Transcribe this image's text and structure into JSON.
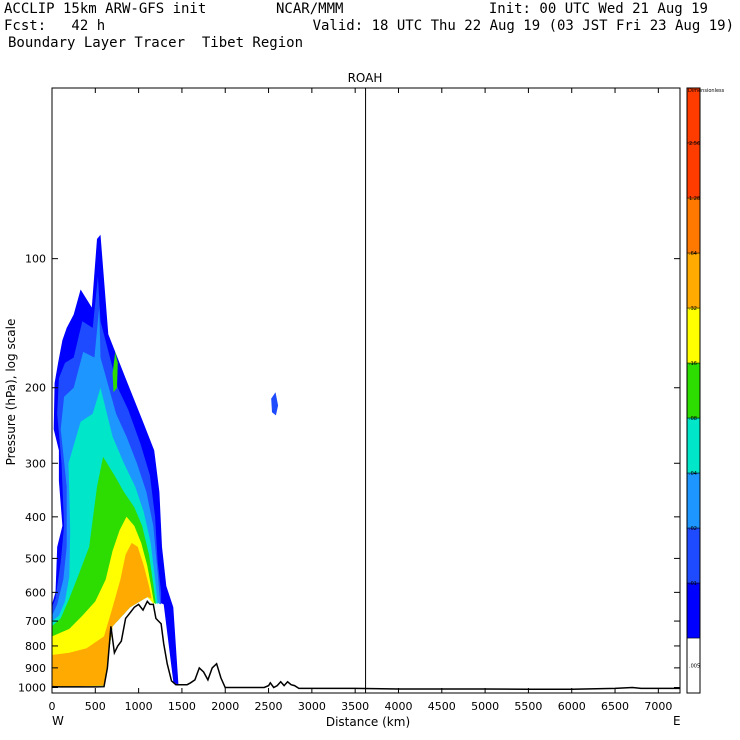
{
  "header": {
    "line1_left": "ACCLIP 15km ARW-GFS init",
    "line1_mid": "NCAR/MMM",
    "line1_right": "Init: 00 UTC Wed 21 Aug 19",
    "line2_left": "Fcst:   42 h",
    "line2_right": "Valid: 18 UTC Thu 22 Aug 19 (03 JST Fri 23 Aug 19)",
    "line3_left": "Boundary Layer Tracer  Tibet Region"
  },
  "chart_data": {
    "type": "heatmap",
    "title": "ROAH",
    "xlabel": "Distance (km)",
    "ylabel": "Pressure (hPa), log scale",
    "x_ticks": [
      0,
      500,
      1000,
      1500,
      2000,
      2500,
      3000,
      3500,
      4000,
      4500,
      5000,
      5500,
      6000,
      6500,
      7000
    ],
    "xlim": [
      0,
      7250
    ],
    "y_ticks": [
      100,
      200,
      300,
      400,
      500,
      600,
      700,
      800,
      900,
      1000
    ],
    "ylim": [
      1030,
      40
    ],
    "y_scale": "log",
    "x_end_labels": {
      "left": "W",
      "right": "E"
    },
    "marker_line_x": 3620,
    "colorbar": {
      "unit": "Dimensionless",
      "levels": [
        ".005",
        ".01",
        ".02",
        ".04",
        ".08",
        ".16",
        ".32",
        ".64",
        "1.28",
        "2.56"
      ],
      "colors": [
        "#ffffff",
        "#0000ff",
        "#1e4bff",
        "#1e96ff",
        "#00e6c8",
        "#2ddc00",
        "#ffff00",
        "#ffaa00",
        "#ff7800",
        "#ff3c00"
      ]
    },
    "tracer_regions": [
      {
        "level": ".01",
        "color": "#0000ff",
        "points": [
          [
            0,
            995
          ],
          [
            600,
            990
          ],
          [
            700,
            720
          ],
          [
            900,
            650
          ],
          [
            1100,
            615
          ],
          [
            1290,
            640
          ],
          [
            1400,
            970
          ],
          [
            1460,
            990
          ],
          [
            1400,
            650
          ],
          [
            1320,
            580
          ],
          [
            1270,
            470
          ],
          [
            1240,
            350
          ],
          [
            1180,
            280
          ],
          [
            1050,
            240
          ],
          [
            850,
            190
          ],
          [
            650,
            150
          ],
          [
            560,
            88
          ],
          [
            520,
            90
          ],
          [
            460,
            130
          ],
          [
            330,
            118
          ],
          [
            250,
            135
          ],
          [
            170,
            145
          ],
          [
            120,
            155
          ],
          [
            70,
            175
          ],
          [
            30,
            195
          ],
          [
            20,
            250
          ],
          [
            80,
            280
          ],
          [
            80,
            330
          ],
          [
            120,
            420
          ],
          [
            60,
            470
          ],
          [
            40,
            600
          ],
          [
            0,
            640
          ]
        ]
      },
      {
        "level": ".02",
        "color": "#1e4bff",
        "points": [
          [
            0,
            995
          ],
          [
            600,
            990
          ],
          [
            700,
            720
          ],
          [
            900,
            650
          ],
          [
            1100,
            615
          ],
          [
            1260,
            640
          ],
          [
            1260,
            600
          ],
          [
            1220,
            510
          ],
          [
            1190,
            400
          ],
          [
            1130,
            320
          ],
          [
            1020,
            270
          ],
          [
            880,
            225
          ],
          [
            760,
            200
          ],
          [
            560,
            140
          ],
          [
            530,
            110
          ],
          [
            470,
            145
          ],
          [
            350,
            140
          ],
          [
            250,
            170
          ],
          [
            150,
            175
          ],
          [
            80,
            190
          ],
          [
            60,
            230
          ],
          [
            110,
            300
          ],
          [
            140,
            420
          ],
          [
            100,
            510
          ],
          [
            40,
            620
          ],
          [
            0,
            650
          ]
        ]
      },
      {
        "level": ".04",
        "color": "#1e96ff",
        "points": [
          [
            0,
            995
          ],
          [
            600,
            990
          ],
          [
            700,
            720
          ],
          [
            900,
            650
          ],
          [
            1100,
            615
          ],
          [
            1250,
            640
          ],
          [
            1220,
            540
          ],
          [
            1170,
            420
          ],
          [
            1090,
            350
          ],
          [
            980,
            300
          ],
          [
            860,
            260
          ],
          [
            740,
            230
          ],
          [
            560,
            170
          ],
          [
            545,
            130
          ],
          [
            490,
            170
          ],
          [
            360,
            165
          ],
          [
            250,
            200
          ],
          [
            140,
            210
          ],
          [
            100,
            250
          ],
          [
            170,
            340
          ],
          [
            170,
            470
          ],
          [
            130,
            560
          ],
          [
            60,
            640
          ],
          [
            0,
            680
          ]
        ]
      },
      {
        "level": ".08",
        "color": "#00e6c8",
        "points": [
          [
            0,
            995
          ],
          [
            600,
            990
          ],
          [
            700,
            720
          ],
          [
            900,
            650
          ],
          [
            1100,
            615
          ],
          [
            1220,
            640
          ],
          [
            1190,
            560
          ],
          [
            1140,
            460
          ],
          [
            1060,
            390
          ],
          [
            960,
            340
          ],
          [
            830,
            300
          ],
          [
            700,
            260
          ],
          [
            560,
            200
          ],
          [
            470,
            230
          ],
          [
            330,
            240
          ],
          [
            190,
            300
          ],
          [
            210,
            430
          ],
          [
            200,
            550
          ],
          [
            150,
            630
          ],
          [
            80,
            680
          ],
          [
            0,
            700
          ]
        ]
      },
      {
        "level": ".16",
        "color": "#2ddc00",
        "points": [
          [
            0,
            995
          ],
          [
            600,
            990
          ],
          [
            700,
            720
          ],
          [
            900,
            650
          ],
          [
            1100,
            615
          ],
          [
            1200,
            640
          ],
          [
            1170,
            575
          ],
          [
            1120,
            490
          ],
          [
            1040,
            420
          ],
          [
            950,
            380
          ],
          [
            830,
            350
          ],
          [
            720,
            320
          ],
          [
            590,
            290
          ],
          [
            520,
            340
          ],
          [
            430,
            470
          ],
          [
            300,
            550
          ],
          [
            200,
            620
          ],
          [
            100,
            690
          ],
          [
            0,
            720
          ]
        ]
      },
      {
        "level": ".32",
        "color": "#ffff00",
        "points": [
          [
            0,
            995
          ],
          [
            600,
            990
          ],
          [
            700,
            720
          ],
          [
            900,
            650
          ],
          [
            1100,
            615
          ],
          [
            1180,
            640
          ],
          [
            1150,
            590
          ],
          [
            1100,
            520
          ],
          [
            1030,
            460
          ],
          [
            950,
            420
          ],
          [
            860,
            400
          ],
          [
            780,
            430
          ],
          [
            700,
            480
          ],
          [
            620,
            560
          ],
          [
            500,
            630
          ],
          [
            350,
            680
          ],
          [
            200,
            730
          ],
          [
            0,
            760
          ]
        ]
      },
      {
        "level": ".64",
        "color": "#ffaa00",
        "points": [
          [
            0,
            995
          ],
          [
            600,
            990
          ],
          [
            700,
            720
          ],
          [
            900,
            650
          ],
          [
            1100,
            615
          ],
          [
            1150,
            620
          ],
          [
            1120,
            580
          ],
          [
            1060,
            520
          ],
          [
            990,
            470
          ],
          [
            920,
            460
          ],
          [
            850,
            490
          ],
          [
            790,
            560
          ],
          [
            700,
            650
          ],
          [
            600,
            760
          ],
          [
            400,
            810
          ],
          [
            200,
            830
          ],
          [
            0,
            840
          ]
        ]
      },
      {
        "level": ".16",
        "color": "#2ddc00",
        "points": [
          [
            700,
            185
          ],
          [
            730,
            165
          ],
          [
            760,
            175
          ],
          [
            750,
            200
          ],
          [
            710,
            205
          ]
        ]
      },
      {
        "level": ".02",
        "color": "#1e4bff",
        "points": [
          [
            2530,
            212
          ],
          [
            2580,
            205
          ],
          [
            2610,
            220
          ],
          [
            2585,
            232
          ],
          [
            2540,
            228
          ]
        ]
      }
    ],
    "terrain_profile": {
      "x": [
        0,
        100,
        300,
        500,
        600,
        640,
        680,
        720,
        760,
        800,
        850,
        900,
        950,
        1000,
        1050,
        1100,
        1130,
        1170,
        1200,
        1230,
        1260,
        1290,
        1330,
        1380,
        1430,
        1500,
        1560,
        1600,
        1650,
        1700,
        1750,
        1800,
        1850,
        1900,
        1950,
        2000,
        2100,
        2300,
        2450,
        2500,
        2520,
        2560,
        2600,
        2640,
        2680,
        2720,
        2760,
        2800,
        2850,
        3000,
        3500,
        4000,
        4500,
        5000,
        5500,
        6000,
        6500,
        6700,
        6800,
        7000,
        7250
      ],
      "p": [
        995,
        997,
        997,
        997,
        996,
        900,
        720,
        830,
        800,
        780,
        690,
        670,
        650,
        640,
        660,
        630,
        640,
        640,
        690,
        700,
        710,
        790,
        880,
        965,
        985,
        985,
        985,
        975,
        960,
        900,
        920,
        960,
        900,
        880,
        950,
        1000,
        1000,
        1000,
        1000,
        990,
        975,
        1000,
        990,
        970,
        990,
        970,
        985,
        990,
        1005,
        1005,
        1005,
        1008,
        1008,
        1008,
        1010,
        1010,
        1005,
        1000,
        1005,
        1005,
        1005
      ]
    }
  }
}
